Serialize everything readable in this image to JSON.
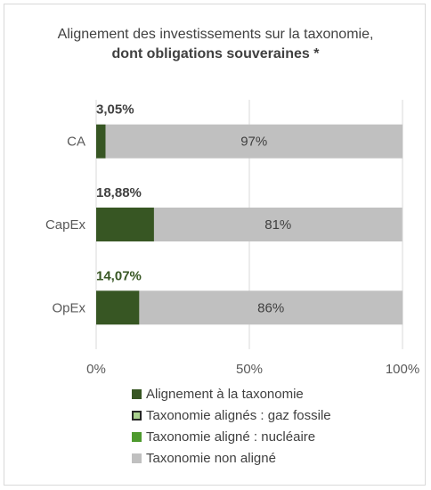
{
  "chart_data": {
    "type": "bar",
    "orientation": "horizontal",
    "stacked": true,
    "title": "Alignement des investissements sur la taxonomie,",
    "subtitle": "dont obligations souveraines *",
    "categories": [
      "CA",
      "CapEx",
      "OpEx"
    ],
    "series": [
      {
        "name": "Alignement à la taxonomie",
        "color": "#375623",
        "values": [
          3.05,
          18.88,
          14.07
        ]
      },
      {
        "name": "Taxonomie alignés : gaz fossile",
        "color": "#a9d08e",
        "values": [
          0,
          0,
          0
        ]
      },
      {
        "name": "Taxonomie aligné : nucléaire",
        "color": "#4e9a2e",
        "values": [
          0,
          0,
          0
        ]
      },
      {
        "name": "Taxonomie non aligné",
        "color": "#c0c0c0",
        "values": [
          97,
          81,
          86
        ]
      }
    ],
    "value_labels": {
      "aligned": [
        "3,05%",
        "18,88%",
        "14,07%"
      ],
      "aligned_colors": [
        "#404040",
        "#404040",
        "#375623"
      ],
      "non_aligned": [
        "97%",
        "81%",
        "86%"
      ]
    },
    "x_ticks": [
      "0%",
      "50%",
      "100%"
    ],
    "xlim": [
      0,
      100
    ],
    "grid": true,
    "legend_position": "bottom"
  }
}
